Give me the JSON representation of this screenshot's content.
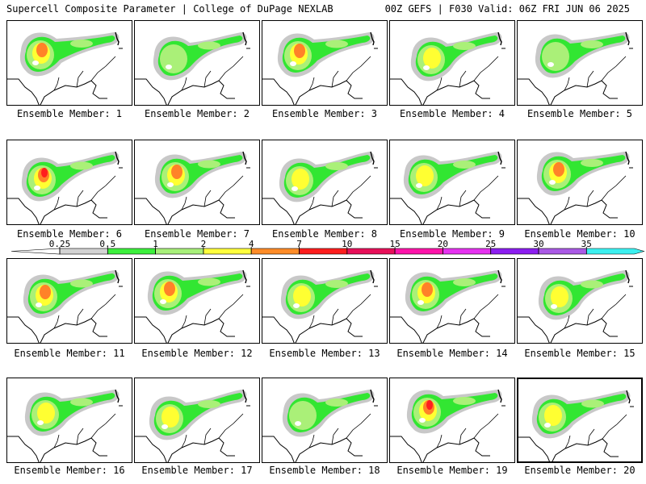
{
  "header": {
    "title_left": "Supercell Composite Parameter | College of DuPage NEXLAB",
    "title_right": "00Z GEFS | F030 Valid: 06Z FRI JUN 06 2025"
  },
  "colorbar": {
    "labels": [
      "0.25",
      "0.5",
      "1",
      "2",
      "4",
      "7",
      "10",
      "15",
      "20",
      "25",
      "30",
      "35"
    ],
    "colors": [
      "#d3d3d3",
      "#3cf03c",
      "#a8f07a",
      "#ffff3c",
      "#ff8c28",
      "#ff1e1e",
      "#e8105a",
      "#ff14aa",
      "#e632f0",
      "#8c1ef0",
      "#aa5ae6",
      "#3cf0f0"
    ]
  },
  "map_colors": {
    "gray": "#c8c8c8",
    "green": "#32e632",
    "light_green": "#aaf078",
    "yellow": "#ffff32",
    "orange": "#ff8228",
    "red": "#ff1e1e",
    "outline": "#000000"
  },
  "panels": [
    {
      "caption": "Ensemble Member: 1",
      "intensity": 4,
      "selected": false
    },
    {
      "caption": "Ensemble Member: 2",
      "intensity": 2,
      "selected": false
    },
    {
      "caption": "Ensemble Member: 3",
      "intensity": 4,
      "selected": false
    },
    {
      "caption": "Ensemble Member: 4",
      "intensity": 3,
      "selected": false
    },
    {
      "caption": "Ensemble Member: 5",
      "intensity": 2,
      "selected": false
    },
    {
      "caption": "Ensemble Member: 6",
      "intensity": 5,
      "selected": false
    },
    {
      "caption": "Ensemble Member: 7",
      "intensity": 4,
      "selected": false
    },
    {
      "caption": "Ensemble Member: 8",
      "intensity": 3,
      "selected": false
    },
    {
      "caption": "Ensemble Member: 9",
      "intensity": 3,
      "selected": false
    },
    {
      "caption": "Ensemble Member: 10",
      "intensity": 4,
      "selected": false
    },
    {
      "caption": "Ensemble Member: 11",
      "intensity": 4,
      "selected": false
    },
    {
      "caption": "Ensemble Member: 12",
      "intensity": 4,
      "selected": false
    },
    {
      "caption": "Ensemble Member: 13",
      "intensity": 3,
      "selected": false
    },
    {
      "caption": "Ensemble Member: 14",
      "intensity": 4,
      "selected": false
    },
    {
      "caption": "Ensemble Member: 15",
      "intensity": 3,
      "selected": false
    },
    {
      "caption": "Ensemble Member: 16",
      "intensity": 3,
      "selected": false
    },
    {
      "caption": "Ensemble Member: 17",
      "intensity": 3,
      "selected": false
    },
    {
      "caption": "Ensemble Member: 18",
      "intensity": 2,
      "selected": false
    },
    {
      "caption": "Ensemble Member: 19",
      "intensity": 5,
      "selected": false
    },
    {
      "caption": "Ensemble Member: 20",
      "intensity": 3,
      "selected": true
    }
  ]
}
